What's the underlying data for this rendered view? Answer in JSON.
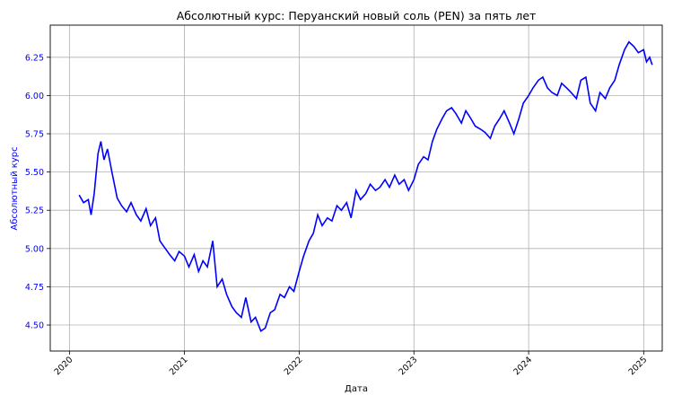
{
  "chart_data": {
    "type": "line",
    "title": "Абсолютный курс: Перуанский новый соль (PEN) за пять лет",
    "xlabel": "Дата",
    "ylabel": "Абсолютный курс",
    "ylabel_color": "#0000ff",
    "ytick_color": "#0000ff",
    "line_color": "#0000ff",
    "grid": true,
    "xlim": [
      "2019-11-01",
      "2025-03-01"
    ],
    "ylim": [
      4.33,
      6.46
    ],
    "x_ticks": [
      "2020",
      "2021",
      "2022",
      "2023",
      "2024",
      "2025"
    ],
    "y_ticks": [
      "4.50",
      "4.75",
      "5.00",
      "5.25",
      "5.50",
      "5.75",
      "6.00",
      "6.25"
    ],
    "series": [
      {
        "x": [
          "2020-02-01",
          "2020-02-15",
          "2020-03-01",
          "2020-03-10",
          "2020-03-20",
          "2020-04-01",
          "2020-04-10",
          "2020-04-20",
          "2020-05-01",
          "2020-05-15",
          "2020-06-01",
          "2020-06-15",
          "2020-07-01",
          "2020-07-15",
          "2020-08-01",
          "2020-08-15",
          "2020-09-01",
          "2020-09-15",
          "2020-10-01",
          "2020-10-15",
          "2020-11-01",
          "2020-11-15",
          "2020-12-01",
          "2020-12-15",
          "2021-01-01",
          "2021-01-15",
          "2021-02-01",
          "2021-02-15",
          "2021-03-01",
          "2021-03-15",
          "2021-04-01",
          "2021-04-15",
          "2021-05-01",
          "2021-05-15",
          "2021-06-01",
          "2021-06-15",
          "2021-07-01",
          "2021-07-15",
          "2021-08-01",
          "2021-08-15",
          "2021-09-01",
          "2021-09-15",
          "2021-10-01",
          "2021-10-15",
          "2021-11-01",
          "2021-11-15",
          "2021-12-01",
          "2021-12-15",
          "2022-01-01",
          "2022-01-15",
          "2022-02-01",
          "2022-02-15",
          "2022-03-01",
          "2022-03-15",
          "2022-04-01",
          "2022-04-15",
          "2022-05-01",
          "2022-05-15",
          "2022-06-01",
          "2022-06-15",
          "2022-07-01",
          "2022-07-15",
          "2022-08-01",
          "2022-08-15",
          "2022-09-01",
          "2022-09-15",
          "2022-10-01",
          "2022-10-15",
          "2022-11-01",
          "2022-11-15",
          "2022-12-01",
          "2022-12-15",
          "2023-01-01",
          "2023-01-15",
          "2023-02-01",
          "2023-02-15",
          "2023-03-01",
          "2023-03-15",
          "2023-04-01",
          "2023-04-15",
          "2023-05-01",
          "2023-05-15",
          "2023-06-01",
          "2023-06-15",
          "2023-07-01",
          "2023-07-15",
          "2023-08-01",
          "2023-08-15",
          "2023-09-01",
          "2023-09-15",
          "2023-10-01",
          "2023-10-15",
          "2023-11-01",
          "2023-11-15",
          "2023-12-01",
          "2023-12-15",
          "2024-01-01",
          "2024-01-15",
          "2024-02-01",
          "2024-02-15",
          "2024-03-01",
          "2024-03-15",
          "2024-04-01",
          "2024-04-15",
          "2024-05-01",
          "2024-05-15",
          "2024-06-01",
          "2024-06-15",
          "2024-07-01",
          "2024-07-15",
          "2024-08-01",
          "2024-08-15",
          "2024-09-01",
          "2024-09-15",
          "2024-10-01",
          "2024-10-15",
          "2024-11-01",
          "2024-11-15",
          "2024-12-01",
          "2024-12-15",
          "2025-01-01",
          "2025-01-10",
          "2025-01-20",
          "2025-01-28"
        ],
        "y": [
          5.35,
          5.3,
          5.32,
          5.22,
          5.36,
          5.62,
          5.7,
          5.58,
          5.65,
          5.5,
          5.33,
          5.28,
          5.24,
          5.3,
          5.22,
          5.18,
          5.26,
          5.15,
          5.2,
          5.05,
          5.0,
          4.96,
          4.92,
          4.98,
          4.95,
          4.88,
          4.96,
          4.85,
          4.92,
          4.88,
          5.05,
          4.75,
          4.8,
          4.7,
          4.62,
          4.58,
          4.55,
          4.68,
          4.52,
          4.55,
          4.46,
          4.48,
          4.58,
          4.6,
          4.7,
          4.68,
          4.75,
          4.72,
          4.85,
          4.95,
          5.05,
          5.1,
          5.22,
          5.15,
          5.2,
          5.18,
          5.28,
          5.25,
          5.3,
          5.2,
          5.38,
          5.32,
          5.36,
          5.42,
          5.38,
          5.4,
          5.45,
          5.4,
          5.48,
          5.42,
          5.45,
          5.38,
          5.45,
          5.55,
          5.6,
          5.58,
          5.7,
          5.78,
          5.85,
          5.9,
          5.92,
          5.88,
          5.82,
          5.9,
          5.85,
          5.8,
          5.78,
          5.76,
          5.72,
          5.8,
          5.85,
          5.9,
          5.82,
          5.75,
          5.85,
          5.95,
          6.0,
          6.05,
          6.1,
          6.12,
          6.05,
          6.02,
          6.0,
          6.08,
          6.05,
          6.02,
          5.98,
          6.1,
          6.12,
          5.95,
          5.9,
          6.02,
          5.98,
          6.05,
          6.1,
          6.2,
          6.3,
          6.35,
          6.32,
          6.28,
          6.3,
          6.22,
          6.25,
          6.2
        ]
      }
    ]
  }
}
